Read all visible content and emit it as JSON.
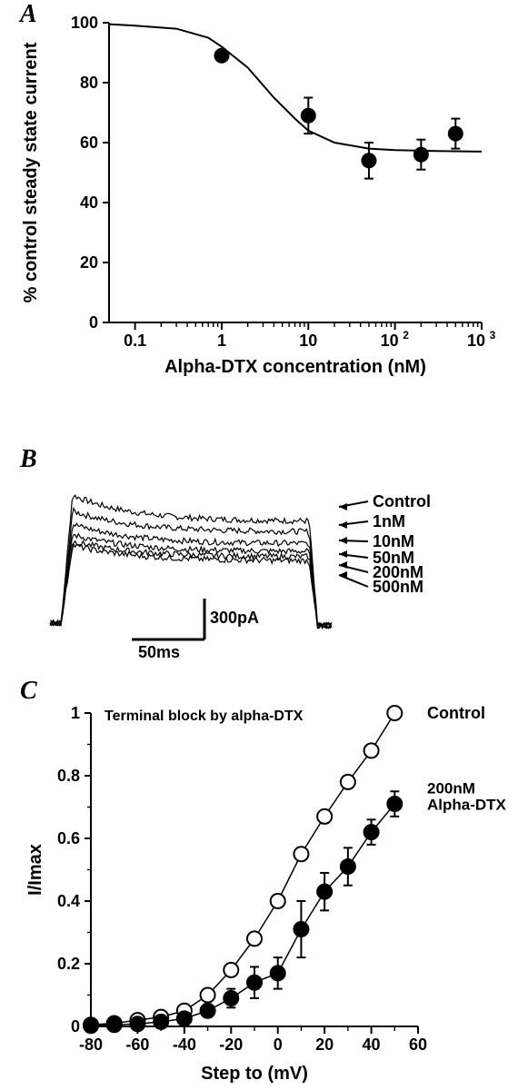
{
  "colors": {
    "bg": "#ffffff",
    "line": "#000000",
    "marker": "#000000",
    "open_marker_fill": "#ffffff",
    "text": "#000000"
  },
  "panelA": {
    "label": "A",
    "ylabel": "% control steady state current",
    "xlabel": "Alpha-DTX concentration (nM)",
    "ylim": [
      0,
      100
    ],
    "ytick_step": 20,
    "xlim_log": [
      -1.3,
      3
    ],
    "xticks_log": [
      -1,
      0,
      1,
      2,
      3
    ],
    "xtick_labels": [
      "0.1",
      "1",
      "10",
      "10²",
      "10³"
    ],
    "axis_fontsize": 20,
    "tick_fontsize": 18,
    "marker_radius": 8,
    "line_width": 2,
    "data": [
      {
        "x": 1,
        "y": 89,
        "err": 0
      },
      {
        "x": 10,
        "y": 69,
        "err": 6
      },
      {
        "x": 50,
        "y": 54,
        "err": 6
      },
      {
        "x": 200,
        "y": 56,
        "err": 5
      },
      {
        "x": 500,
        "y": 63,
        "err": 5
      }
    ],
    "curve": [
      {
        "x": 0.05,
        "y": 99.5
      },
      {
        "x": 0.1,
        "y": 99
      },
      {
        "x": 0.3,
        "y": 98
      },
      {
        "x": 0.7,
        "y": 95
      },
      {
        "x": 1,
        "y": 92
      },
      {
        "x": 2,
        "y": 85
      },
      {
        "x": 4,
        "y": 75
      },
      {
        "x": 7,
        "y": 68
      },
      {
        "x": 10,
        "y": 64
      },
      {
        "x": 20,
        "y": 60
      },
      {
        "x": 50,
        "y": 58
      },
      {
        "x": 100,
        "y": 57.5
      },
      {
        "x": 300,
        "y": 57.2
      },
      {
        "x": 1000,
        "y": 57
      }
    ]
  },
  "panelB": {
    "label": "B",
    "scale_x_ms": "50ms",
    "scale_y_pA": "300pA",
    "scale_fontsize": 18,
    "trace_labels": [
      "Control",
      "1nM",
      "10nM",
      "50nM",
      "200nM",
      "500nM"
    ],
    "label_fontsize": 18,
    "trace_color": "#000000",
    "trace_width": 1.2
  },
  "panelC": {
    "label": "C",
    "title": "Terminal block by alpha-DTX",
    "title_fontsize": 16,
    "ylabel": "I/Imax",
    "xlabel": "Step to (mV)",
    "ylim": [
      0,
      1
    ],
    "ytick_step": 0.2,
    "xlim": [
      -80,
      60
    ],
    "xtick_step": 20,
    "axis_fontsize": 20,
    "tick_fontsize": 18,
    "marker_radius": 8,
    "line_width": 1.5,
    "series": [
      {
        "name": "Control",
        "label": "Control",
        "marker_fill": "#ffffff",
        "data": [
          {
            "x": -80,
            "y": 0.005,
            "err": 0
          },
          {
            "x": -70,
            "y": 0.01,
            "err": 0
          },
          {
            "x": -60,
            "y": 0.02,
            "err": 0
          },
          {
            "x": -50,
            "y": 0.03,
            "err": 0
          },
          {
            "x": -40,
            "y": 0.05,
            "err": 0.01
          },
          {
            "x": -30,
            "y": 0.1,
            "err": 0.015
          },
          {
            "x": -20,
            "y": 0.18,
            "err": 0.02
          },
          {
            "x": -10,
            "y": 0.28,
            "err": 0.02
          },
          {
            "x": 0,
            "y": 0.4,
            "err": 0.02
          },
          {
            "x": 10,
            "y": 0.55,
            "err": 0.02
          },
          {
            "x": 20,
            "y": 0.67,
            "err": 0.02
          },
          {
            "x": 30,
            "y": 0.78,
            "err": 0.02
          },
          {
            "x": 40,
            "y": 0.88,
            "err": 0
          },
          {
            "x": 50,
            "y": 1.0,
            "err": 0
          }
        ]
      },
      {
        "name": "200nM Alpha-DTX",
        "label": "200nM\nAlpha-DTX",
        "marker_fill": "#000000",
        "data": [
          {
            "x": -80,
            "y": 0.002,
            "err": 0
          },
          {
            "x": -70,
            "y": 0.005,
            "err": 0
          },
          {
            "x": -60,
            "y": 0.008,
            "err": 0
          },
          {
            "x": -50,
            "y": 0.015,
            "err": 0.01
          },
          {
            "x": -40,
            "y": 0.025,
            "err": 0.015
          },
          {
            "x": -30,
            "y": 0.05,
            "err": 0.02
          },
          {
            "x": -20,
            "y": 0.09,
            "err": 0.03
          },
          {
            "x": -10,
            "y": 0.14,
            "err": 0.05
          },
          {
            "x": 0,
            "y": 0.17,
            "err": 0.05
          },
          {
            "x": 10,
            "y": 0.31,
            "err": 0.09
          },
          {
            "x": 20,
            "y": 0.43,
            "err": 0.06
          },
          {
            "x": 30,
            "y": 0.51,
            "err": 0.06
          },
          {
            "x": 40,
            "y": 0.62,
            "err": 0.04
          },
          {
            "x": 50,
            "y": 0.71,
            "err": 0.04
          }
        ]
      }
    ]
  }
}
